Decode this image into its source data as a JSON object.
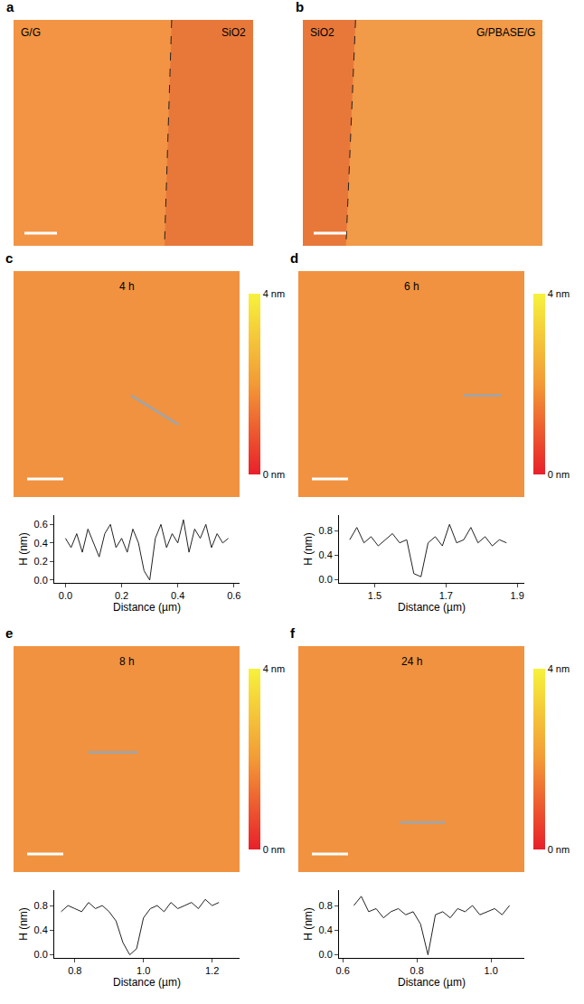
{
  "panels": [
    {
      "label": "a",
      "texts": [
        "G/G",
        "SiO2"
      ]
    },
    {
      "label": "b",
      "texts": [
        "SiO2",
        "G/PBASE/G"
      ]
    }
  ],
  "chart_data": [
    {
      "panel": "c",
      "type": "line",
      "annotation": "4 h",
      "color": "#222222",
      "x_label": "Distance (µm)",
      "y_label": "H (nm)",
      "x": [
        0.0,
        0.02,
        0.04,
        0.06,
        0.08,
        0.1,
        0.12,
        0.14,
        0.16,
        0.18,
        0.2,
        0.22,
        0.24,
        0.26,
        0.28,
        0.3,
        0.32,
        0.34,
        0.36,
        0.38,
        0.4,
        0.42,
        0.44,
        0.46,
        0.48,
        0.5,
        0.52,
        0.54,
        0.56,
        0.58
      ],
      "values": [
        0.45,
        0.35,
        0.5,
        0.3,
        0.55,
        0.4,
        0.25,
        0.5,
        0.6,
        0.35,
        0.45,
        0.3,
        0.55,
        0.4,
        0.1,
        0.0,
        0.45,
        0.6,
        0.35,
        0.5,
        0.4,
        0.65,
        0.3,
        0.55,
        0.45,
        0.6,
        0.35,
        0.5,
        0.4,
        0.45
      ],
      "xlim": [
        -0.04,
        0.62
      ],
      "xticks": [
        {
          "value": 0,
          "label": "0.0"
        },
        0.2,
        0.4,
        0.6
      ],
      "ylim": [
        -0.03,
        0.7
      ],
      "yticks": [
        {
          "value": 0,
          "label": "0.0"
        },
        0.2,
        0.4,
        0.6
      ],
      "colorbar": {
        "range": [
          0,
          4
        ],
        "ticks": [
          {
            "value": 0,
            "label": "0 nm"
          },
          {
            "value": 4,
            "label": "4 nm"
          }
        ]
      }
    },
    {
      "panel": "d",
      "type": "line",
      "annotation": "6 h",
      "color": "#222222",
      "x_label": "Distance (µm)",
      "y_label": "H (nm)",
      "x": [
        1.43,
        1.45,
        1.47,
        1.49,
        1.51,
        1.53,
        1.55,
        1.57,
        1.59,
        1.61,
        1.63,
        1.65,
        1.67,
        1.69,
        1.71,
        1.73,
        1.75,
        1.77,
        1.79,
        1.81,
        1.83,
        1.85,
        1.87
      ],
      "values": [
        0.65,
        0.85,
        0.6,
        0.7,
        0.55,
        0.65,
        0.75,
        0.6,
        0.65,
        0.1,
        0.05,
        0.6,
        0.7,
        0.55,
        0.9,
        0.6,
        0.65,
        0.85,
        0.6,
        0.7,
        0.55,
        0.65,
        0.6
      ],
      "xlim": [
        1.4,
        1.92
      ],
      "xticks": [
        1.5,
        1.7,
        1.9
      ],
      "ylim": [
        -0.05,
        1.05
      ],
      "yticks": [
        {
          "value": 0,
          "label": "0.0"
        },
        0.4,
        0.8
      ],
      "colorbar": {
        "range": [
          0,
          4
        ],
        "ticks": [
          {
            "value": 0,
            "label": "0 nm"
          },
          {
            "value": 4,
            "label": "4 nm"
          }
        ]
      }
    },
    {
      "panel": "e",
      "type": "line",
      "annotation": "8 h",
      "color": "#222222",
      "x_label": "Distance (µm)",
      "y_label": "H (nm)",
      "x": [
        0.76,
        0.78,
        0.8,
        0.82,
        0.84,
        0.86,
        0.88,
        0.9,
        0.92,
        0.94,
        0.96,
        0.98,
        1.0,
        1.02,
        1.04,
        1.06,
        1.08,
        1.1,
        1.12,
        1.14,
        1.16,
        1.18,
        1.2,
        1.22
      ],
      "values": [
        0.7,
        0.8,
        0.75,
        0.7,
        0.85,
        0.75,
        0.8,
        0.7,
        0.55,
        0.2,
        0.0,
        0.1,
        0.6,
        0.75,
        0.8,
        0.7,
        0.85,
        0.75,
        0.8,
        0.85,
        0.75,
        0.9,
        0.8,
        0.85
      ],
      "xlim": [
        0.74,
        1.28
      ],
      "xticks": [
        0.8,
        {
          "value": 1,
          "label": "1.0"
        },
        1.2
      ],
      "ylim": [
        -0.05,
        1.05
      ],
      "yticks": [
        {
          "value": 0,
          "label": "0.0"
        },
        0.4,
        0.8
      ],
      "colorbar": {
        "range": [
          0,
          4
        ],
        "ticks": [
          {
            "value": 0,
            "label": "0 nm"
          },
          {
            "value": 4,
            "label": "4 nm"
          }
        ]
      }
    },
    {
      "panel": "f",
      "type": "line",
      "annotation": "24 h",
      "color": "#222222",
      "x_label": "Distance (µm)",
      "y_label": "H (nm)",
      "x": [
        0.63,
        0.65,
        0.67,
        0.69,
        0.71,
        0.73,
        0.75,
        0.77,
        0.79,
        0.81,
        0.83,
        0.85,
        0.87,
        0.89,
        0.91,
        0.93,
        0.95,
        0.97,
        0.99,
        1.01,
        1.03,
        1.05
      ],
      "values": [
        0.8,
        0.95,
        0.7,
        0.75,
        0.6,
        0.7,
        0.75,
        0.65,
        0.7,
        0.5,
        0.0,
        0.65,
        0.7,
        0.6,
        0.75,
        0.7,
        0.8,
        0.65,
        0.7,
        0.75,
        0.65,
        0.8
      ],
      "xlim": [
        0.59,
        1.09
      ],
      "xticks": [
        0.6,
        0.8,
        {
          "value": 1,
          "label": "1.0"
        }
      ],
      "ylim": [
        -0.05,
        1.05
      ],
      "yticks": [
        {
          "value": 0,
          "label": "0.0"
        },
        0.4,
        0.8
      ],
      "colorbar": {
        "range": [
          0,
          4
        ],
        "ticks": [
          {
            "value": 0,
            "label": "0 nm"
          },
          {
            "value": 4,
            "label": "4 nm"
          }
        ]
      }
    }
  ]
}
